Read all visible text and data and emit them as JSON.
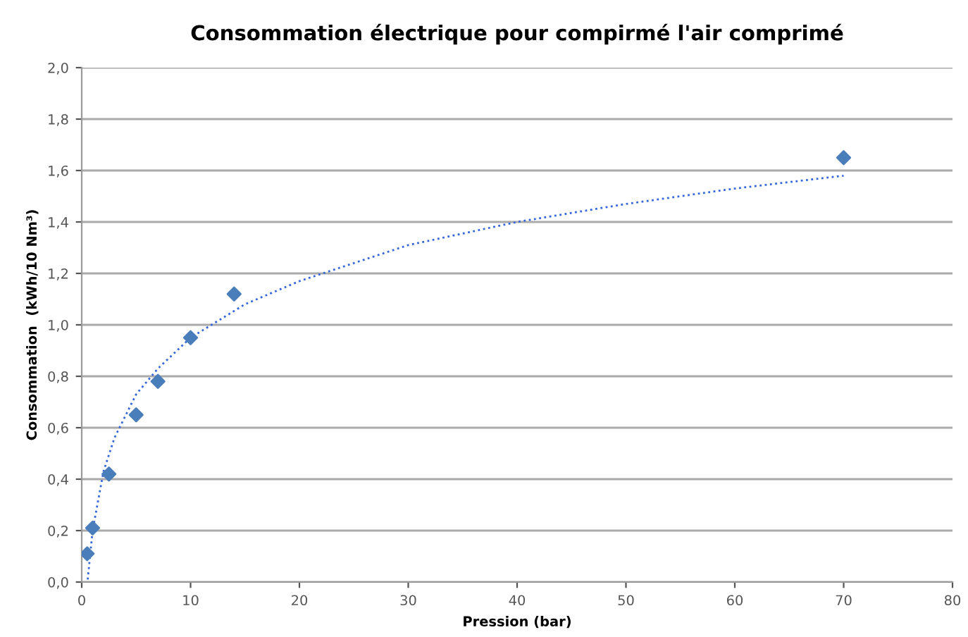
{
  "chart_data": {
    "type": "scatter",
    "title": "Consommation électrique pour compirmé l'air comprimé",
    "xlabel": "Pression (bar)",
    "ylabel": "Consommation  (kWh/10 Nm³)",
    "series": [
      {
        "color": "#4a7ebb",
        "marker": "diamond",
        "x": [
          0.5,
          1,
          2.5,
          5,
          7,
          10,
          14,
          70
        ],
        "values": [
          0.11,
          0.21,
          0.42,
          0.65,
          0.78,
          0.95,
          1.12,
          1.65
        ]
      },
      {
        "type": "line",
        "color": "#3366dd",
        "line_style": "dotted",
        "x": [
          0.55,
          1,
          2,
          3,
          5,
          7,
          10,
          15,
          20,
          30,
          40,
          50,
          60,
          70
        ],
        "values": [
          0.01,
          0.2,
          0.43,
          0.56,
          0.73,
          0.83,
          0.95,
          1.08,
          1.17,
          1.31,
          1.4,
          1.47,
          1.53,
          1.58
        ]
      }
    ],
    "xlim": [
      0,
      80
    ],
    "xticks": [
      0,
      10,
      20,
      30,
      40,
      50,
      60,
      70,
      80
    ],
    "ylim": [
      0,
      2
    ],
    "yticks": [
      {
        "value": 0,
        "label": "0,0"
      },
      {
        "value": 0.2,
        "label": "0,2"
      },
      {
        "value": 0.4,
        "label": "0,4"
      },
      {
        "value": 0.6,
        "label": "0,6"
      },
      {
        "value": 0.8,
        "label": "0,8"
      },
      {
        "value": 1.0,
        "label": "1,0"
      },
      {
        "value": 1.2,
        "label": "1,2"
      },
      {
        "value": 1.4,
        "label": "1,4"
      },
      {
        "value": 1.6,
        "label": "1,6"
      },
      {
        "value": 1.8,
        "label": "1,8"
      },
      {
        "value": 2.0,
        "label": "2,0"
      }
    ],
    "grid": "y",
    "legend": false
  }
}
